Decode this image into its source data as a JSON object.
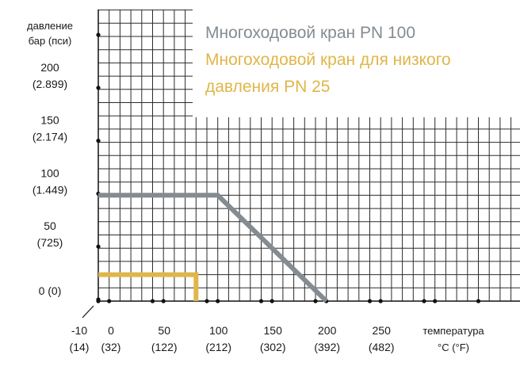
{
  "chart_data": {
    "type": "line",
    "ylabel_lines": [
      "давление",
      "бар (пси)"
    ],
    "xlabel_lines": [
      "температура",
      "°C (°F)"
    ],
    "xlim": [
      -10,
      350
    ],
    "ylim": [
      0,
      215
    ],
    "grid": true,
    "legend_placement": "top-right",
    "y_ticks": [
      {
        "value": 0,
        "lines": [
          "0 (0)"
        ]
      },
      {
        "value": 50,
        "lines": [
          "50",
          "(725)"
        ]
      },
      {
        "value": 100,
        "lines": [
          "100",
          "(1.449)"
        ]
      },
      {
        "value": 150,
        "lines": [
          "150",
          "(2.174)"
        ]
      },
      {
        "value": 200,
        "lines": [
          "200",
          "(2.899)"
        ]
      }
    ],
    "x_ticks": [
      {
        "value": -10,
        "lines": [
          "-10",
          "(14)"
        ]
      },
      {
        "value": 0,
        "lines": [
          "0",
          "(32)"
        ]
      },
      {
        "value": 50,
        "lines": [
          "50",
          "(122)"
        ]
      },
      {
        "value": 100,
        "lines": [
          "100",
          "(212)"
        ]
      },
      {
        "value": 150,
        "lines": [
          "150",
          "(302)"
        ]
      },
      {
        "value": 200,
        "lines": [
          "200",
          "(392)"
        ]
      },
      {
        "value": 250,
        "lines": [
          "250",
          "(482)"
        ]
      }
    ],
    "series": [
      {
        "name": "Многоходовой кран PN 100",
        "name_lines": [
          "Многоходовой кран PN 100"
        ],
        "color": "#848b91",
        "points": [
          [
            -10,
            100
          ],
          [
            100,
            100
          ],
          [
            200,
            0
          ]
        ]
      },
      {
        "name": "Многоходовой кран для низкого давления PN 25",
        "name_lines": [
          "Многоходовой кран для низкого",
          "давления PN 25"
        ],
        "color": "#e0b64a",
        "points": [
          [
            -10,
            25
          ],
          [
            80,
            25
          ],
          [
            80,
            0
          ]
        ]
      }
    ]
  }
}
